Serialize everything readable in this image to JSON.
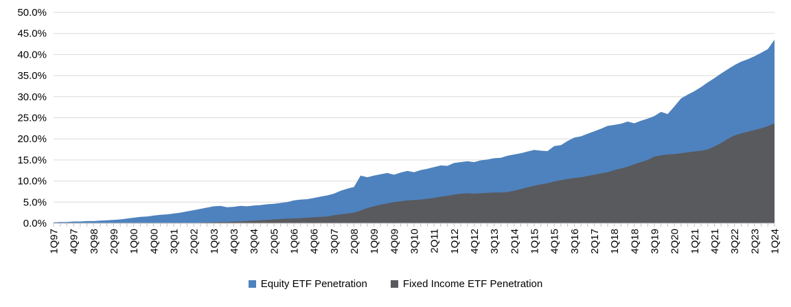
{
  "chart_data": {
    "type": "area",
    "title": "",
    "xlabel": "",
    "ylabel": "",
    "ylim": [
      0,
      50
    ],
    "y_tick_step": 5,
    "y_ticks": [
      "0.0%",
      "5.0%",
      "10.0%",
      "15.0%",
      "20.0%",
      "25.0%",
      "30.0%",
      "35.0%",
      "40.0%",
      "45.0%",
      "50.0%"
    ],
    "grid": "horizontal",
    "legend_position": "bottom",
    "n_points": 109,
    "x_label_every": 3,
    "x_tick_labels": [
      "1Q97",
      "4Q97",
      "3Q98",
      "2Q99",
      "1Q00",
      "4Q00",
      "3Q01",
      "2Q02",
      "1Q03",
      "4Q03",
      "3Q04",
      "2Q05",
      "1Q06",
      "4Q06",
      "3Q07",
      "2Q08",
      "1Q09",
      "4Q09",
      "3Q10",
      "2Q11",
      "1Q12",
      "4Q12",
      "3Q13",
      "2Q14",
      "1Q15",
      "4Q15",
      "3Q16",
      "2Q17",
      "1Q18",
      "4Q18",
      "3Q19",
      "2Q20",
      "1Q21",
      "4Q21",
      "3Q22",
      "2Q23",
      "1Q24"
    ],
    "series": [
      {
        "name": "Equity ETF Penetration",
        "color": "#4E82BE",
        "values": [
          0.2,
          0.3,
          0.3,
          0.4,
          0.4,
          0.5,
          0.5,
          0.6,
          0.7,
          0.8,
          0.9,
          1.1,
          1.3,
          1.5,
          1.6,
          1.8,
          2.0,
          2.1,
          2.3,
          2.5,
          2.8,
          3.1,
          3.4,
          3.7,
          4.0,
          4.1,
          3.8,
          3.9,
          4.1,
          4.0,
          4.2,
          4.3,
          4.5,
          4.6,
          4.8,
          5.0,
          5.4,
          5.6,
          5.7,
          6.0,
          6.3,
          6.6,
          7.0,
          7.7,
          8.2,
          8.6,
          11.3,
          10.9,
          11.3,
          11.6,
          11.9,
          11.5,
          12.0,
          12.4,
          12.1,
          12.6,
          12.9,
          13.3,
          13.7,
          13.6,
          14.3,
          14.5,
          14.7,
          14.5,
          14.9,
          15.1,
          15.4,
          15.5,
          16.0,
          16.3,
          16.6,
          17.0,
          17.4,
          17.2,
          17.1,
          18.3,
          18.5,
          19.5,
          20.3,
          20.6,
          21.2,
          21.8,
          22.4,
          23.1,
          23.3,
          23.6,
          24.1,
          23.7,
          24.3,
          24.8,
          25.4,
          26.4,
          25.9,
          27.7,
          29.6,
          30.5,
          31.3,
          32.3,
          33.4,
          34.4,
          35.5,
          36.5,
          37.5,
          38.3,
          38.9,
          39.6,
          40.4,
          41.3,
          43.5
        ]
      },
      {
        "name": "Fixed Income ETF Penetration",
        "color": "#595A5E",
        "values": [
          0,
          0,
          0,
          0,
          0,
          0,
          0,
          0,
          0,
          0,
          0,
          0,
          0,
          0,
          0,
          0,
          0,
          0,
          0,
          0,
          0,
          0,
          0.1,
          0.2,
          0.2,
          0.3,
          0.3,
          0.4,
          0.4,
          0.5,
          0.6,
          0.7,
          0.8,
          0.9,
          1.0,
          1.1,
          1.1,
          1.2,
          1.3,
          1.4,
          1.5,
          1.6,
          1.9,
          2.1,
          2.3,
          2.5,
          3.0,
          3.6,
          4.0,
          4.4,
          4.7,
          5.0,
          5.2,
          5.4,
          5.5,
          5.6,
          5.8,
          6.0,
          6.3,
          6.5,
          6.8,
          7.0,
          7.1,
          7.0,
          7.1,
          7.2,
          7.3,
          7.3,
          7.4,
          7.7,
          8.1,
          8.5,
          8.9,
          9.2,
          9.5,
          9.9,
          10.2,
          10.5,
          10.7,
          10.9,
          11.2,
          11.5,
          11.8,
          12.1,
          12.6,
          13.0,
          13.4,
          14.0,
          14.5,
          15.0,
          15.8,
          16.1,
          16.3,
          16.4,
          16.6,
          16.8,
          17.0,
          17.2,
          17.5,
          18.2,
          19.0,
          20.0,
          20.8,
          21.3,
          21.7,
          22.1,
          22.5,
          23.0,
          23.7
        ]
      }
    ],
    "colors": {
      "gridline": "#D9D9D9",
      "axis": "#BFBFBF",
      "tick": "#BFBFBF",
      "label_text": "#000000"
    }
  }
}
